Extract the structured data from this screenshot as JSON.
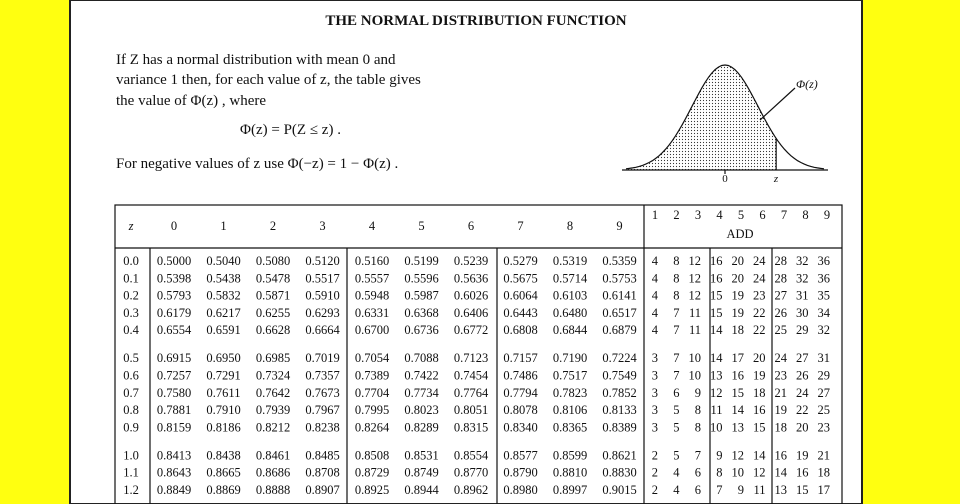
{
  "header": {
    "title": "THE NORMAL DISTRIBUTION FUNCTION"
  },
  "intro": {
    "lines": [
      "If Z has a normal distribution with mean 0 and",
      "variance 1 then, for each value of z, the table gives",
      "the value of Φ(z) , where"
    ],
    "formula": "Φ(z) = P(Z ≤ z) .",
    "negative": "For negative values of z use  Φ(−z) = 1 − Φ(z) ."
  },
  "figure": {
    "curve_label": "Φ(z)",
    "axis_zero": "0",
    "axis_z": "z"
  },
  "table": {
    "z_header": "z",
    "columns": [
      "0",
      "1",
      "2",
      "3",
      "4",
      "5",
      "6",
      "7",
      "8",
      "9"
    ],
    "add_label": "ADD",
    "add_columns": [
      "1",
      "2",
      "3",
      "4",
      "5",
      "6",
      "7",
      "8",
      "9"
    ],
    "rows": [
      {
        "z": "0.0",
        "values": [
          "0.5000",
          "0.5040",
          "0.5080",
          "0.5120",
          "0.5160",
          "0.5199",
          "0.5239",
          "0.5279",
          "0.5319",
          "0.5359"
        ],
        "add": [
          4,
          8,
          12,
          16,
          20,
          24,
          28,
          32,
          36
        ]
      },
      {
        "z": "0.1",
        "values": [
          "0.5398",
          "0.5438",
          "0.5478",
          "0.5517",
          "0.5557",
          "0.5596",
          "0.5636",
          "0.5675",
          "0.5714",
          "0.5753"
        ],
        "add": [
          4,
          8,
          12,
          16,
          20,
          24,
          28,
          32,
          36
        ]
      },
      {
        "z": "0.2",
        "values": [
          "0.5793",
          "0.5832",
          "0.5871",
          "0.5910",
          "0.5948",
          "0.5987",
          "0.6026",
          "0.6064",
          "0.6103",
          "0.6141"
        ],
        "add": [
          4,
          8,
          12,
          15,
          19,
          23,
          27,
          31,
          35
        ]
      },
      {
        "z": "0.3",
        "values": [
          "0.6179",
          "0.6217",
          "0.6255",
          "0.6293",
          "0.6331",
          "0.6368",
          "0.6406",
          "0.6443",
          "0.6480",
          "0.6517"
        ],
        "add": [
          4,
          7,
          11,
          15,
          19,
          22,
          26,
          30,
          34
        ]
      },
      {
        "z": "0.4",
        "values": [
          "0.6554",
          "0.6591",
          "0.6628",
          "0.6664",
          "0.6700",
          "0.6736",
          "0.6772",
          "0.6808",
          "0.6844",
          "0.6879"
        ],
        "add": [
          4,
          7,
          11,
          14,
          18,
          22,
          25,
          29,
          32
        ]
      },
      {
        "z": "0.5",
        "values": [
          "0.6915",
          "0.6950",
          "0.6985",
          "0.7019",
          "0.7054",
          "0.7088",
          "0.7123",
          "0.7157",
          "0.7190",
          "0.7224"
        ],
        "add": [
          3,
          7,
          10,
          14,
          17,
          20,
          24,
          27,
          31
        ]
      },
      {
        "z": "0.6",
        "values": [
          "0.7257",
          "0.7291",
          "0.7324",
          "0.7357",
          "0.7389",
          "0.7422",
          "0.7454",
          "0.7486",
          "0.7517",
          "0.7549"
        ],
        "add": [
          3,
          7,
          10,
          13,
          16,
          19,
          23,
          26,
          29
        ]
      },
      {
        "z": "0.7",
        "values": [
          "0.7580",
          "0.7611",
          "0.7642",
          "0.7673",
          "0.7704",
          "0.7734",
          "0.7764",
          "0.7794",
          "0.7823",
          "0.7852"
        ],
        "add": [
          3,
          6,
          9,
          12,
          15,
          18,
          21,
          24,
          27
        ]
      },
      {
        "z": "0.8",
        "values": [
          "0.7881",
          "0.7910",
          "0.7939",
          "0.7967",
          "0.7995",
          "0.8023",
          "0.8051",
          "0.8078",
          "0.8106",
          "0.8133"
        ],
        "add": [
          3,
          5,
          8,
          11,
          14,
          16,
          19,
          22,
          25
        ]
      },
      {
        "z": "0.9",
        "values": [
          "0.8159",
          "0.8186",
          "0.8212",
          "0.8238",
          "0.8264",
          "0.8289",
          "0.8315",
          "0.8340",
          "0.8365",
          "0.8389"
        ],
        "add": [
          3,
          5,
          8,
          10,
          13,
          15,
          18,
          20,
          23
        ]
      },
      {
        "z": "1.0",
        "values": [
          "0.8413",
          "0.8438",
          "0.8461",
          "0.8485",
          "0.8508",
          "0.8531",
          "0.8554",
          "0.8577",
          "0.8599",
          "0.8621"
        ],
        "add": [
          2,
          5,
          7,
          9,
          12,
          14,
          16,
          19,
          21
        ]
      },
      {
        "z": "1.1",
        "values": [
          "0.8643",
          "0.8665",
          "0.8686",
          "0.8708",
          "0.8729",
          "0.8749",
          "0.8770",
          "0.8790",
          "0.8810",
          "0.8830"
        ],
        "add": [
          2,
          4,
          6,
          8,
          10,
          12,
          14,
          16,
          18
        ]
      },
      {
        "z": "1.2",
        "values": [
          "0.8849",
          "0.8869",
          "0.8888",
          "0.8907",
          "0.8925",
          "0.8944",
          "0.8962",
          "0.8980",
          "0.8997",
          "0.9015"
        ],
        "add": [
          2,
          4,
          6,
          7,
          9,
          11,
          13,
          15,
          17
        ]
      }
    ]
  }
}
